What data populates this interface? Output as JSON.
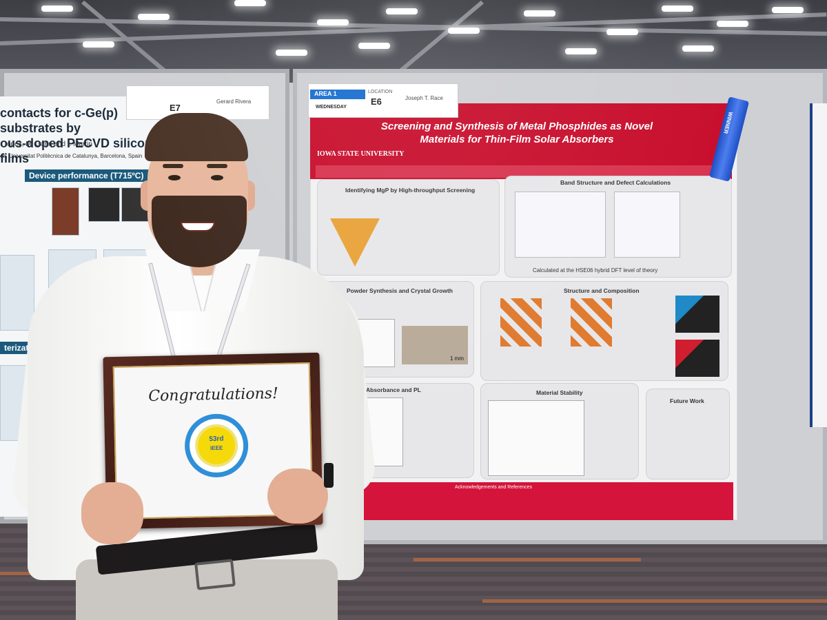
{
  "left_poster": {
    "title_line1": "contacts for c-Ge(p) substrates by",
    "title_line2": "ous-doped PECVD silicon films",
    "authors": "ópez, M. Garin and I. Martin",
    "affiliation": "ca, Universitat Politècnica de Catalunya, Barcelona, Spain",
    "section_device": "Device performance (T",
    "section_device_tail": "715ºC)",
    "section_char": "terization",
    "location_card": {
      "code": "E7",
      "presenter": "Gerard Rivera"
    }
  },
  "main_poster": {
    "title_line1": "Screening and Synthesis of Metal Phosphides as Novel",
    "title_line2": "Materials for Thin-Film Solar Absorbers",
    "institution": "IOWA STATE UNIVERSITY",
    "panels": {
      "screening": "Identifying MgP by High-throughput Screening",
      "band": "Band Structure and Defect Calculations",
      "powder": "Powder Synthesis and Crystal Growth",
      "structure": "Structure and Composition",
      "absorbance": "Absorbance and PL",
      "stability": "Material Stability",
      "future": "Future Work"
    },
    "band_caption": "Calculated at the HSE06 hybrid DFT level of theory",
    "scale_label": "1 mm",
    "footer": "Acknowledgements and References",
    "location_card": {
      "area": "AREA 1",
      "day": "WEDNESDAY",
      "location_label": "LOCATION",
      "code": "E6",
      "presenter": "Joseph T. Race"
    }
  },
  "ribbon": {
    "text": "WINNER",
    "color": "#2457d6"
  },
  "plaque": {
    "text": "Congratulations!",
    "seal": {
      "number": "53rd",
      "org": "IEEE"
    }
  },
  "colors": {
    "poster_red": "#c8102e",
    "plaque_wood": "#4a231a",
    "seal_blue": "#2f8fd8"
  }
}
